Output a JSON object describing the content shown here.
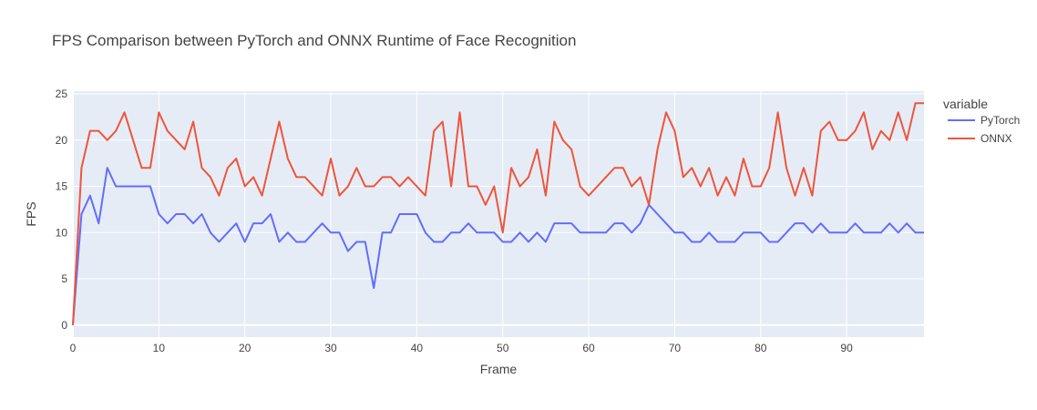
{
  "chart_data": {
    "type": "line",
    "title": "FPS Comparison between PyTorch and ONNX Runtime of Face Recognition",
    "xlabel": "Frame",
    "ylabel": "FPS",
    "xlim": [
      0,
      99
    ],
    "ylim": [
      -1.3,
      25.3
    ],
    "x_ticks": [
      0,
      10,
      20,
      30,
      40,
      50,
      60,
      70,
      80,
      90
    ],
    "y_ticks": [
      0,
      5,
      10,
      15,
      20,
      25
    ],
    "grid": true,
    "legend": {
      "title": "variable",
      "position": "right"
    },
    "plot_background": "#E5ECF6",
    "x": [
      0,
      1,
      2,
      3,
      4,
      5,
      6,
      7,
      8,
      9,
      10,
      11,
      12,
      13,
      14,
      15,
      16,
      17,
      18,
      19,
      20,
      21,
      22,
      23,
      24,
      25,
      26,
      27,
      28,
      29,
      30,
      31,
      32,
      33,
      34,
      35,
      36,
      37,
      38,
      39,
      40,
      41,
      42,
      43,
      44,
      45,
      46,
      47,
      48,
      49,
      50,
      51,
      52,
      53,
      54,
      55,
      56,
      57,
      58,
      59,
      60,
      61,
      62,
      63,
      64,
      65,
      66,
      67,
      68,
      69,
      70,
      71,
      72,
      73,
      74,
      75,
      76,
      77,
      78,
      79,
      80,
      81,
      82,
      83,
      84,
      85,
      86,
      87,
      88,
      89,
      90,
      91,
      92,
      93,
      94,
      95,
      96,
      97,
      98,
      99
    ],
    "series": [
      {
        "name": "PyTorch",
        "color": "#636EFA",
        "values": [
          0,
          12,
          14,
          11,
          17,
          15,
          15,
          15,
          15,
          15,
          12,
          11,
          12,
          12,
          11,
          12,
          10,
          9,
          10,
          11,
          9,
          11,
          11,
          12,
          9,
          10,
          9,
          9,
          10,
          11,
          10,
          10,
          8,
          9,
          9,
          4,
          10,
          10,
          12,
          12,
          12,
          10,
          9,
          9,
          10,
          10,
          11,
          10,
          10,
          10,
          9,
          9,
          10,
          9,
          10,
          9,
          11,
          11,
          11,
          10,
          10,
          10,
          10,
          11,
          11,
          10,
          11,
          13,
          12,
          11,
          10,
          10,
          9,
          9,
          10,
          9,
          9,
          9,
          10,
          10,
          10,
          9,
          9,
          10,
          11,
          11,
          10,
          11,
          10,
          10,
          10,
          11,
          10,
          10,
          10,
          11,
          10,
          11,
          10,
          10
        ]
      },
      {
        "name": "ONNX",
        "color": "#EF553B",
        "values": [
          0,
          17,
          21,
          21,
          20,
          21,
          23,
          20,
          17,
          17,
          23,
          21,
          20,
          19,
          22,
          17,
          16,
          14,
          17,
          18,
          15,
          16,
          14,
          18,
          22,
          18,
          16,
          16,
          15,
          14,
          18,
          14,
          15,
          17,
          15,
          15,
          16,
          16,
          15,
          16,
          15,
          14,
          21,
          22,
          15,
          23,
          15,
          15,
          13,
          15,
          10,
          17,
          15,
          16,
          19,
          14,
          22,
          20,
          19,
          15,
          14,
          15,
          16,
          17,
          17,
          15,
          16,
          13,
          19,
          23,
          21,
          16,
          17,
          15,
          17,
          14,
          16,
          14,
          18,
          15,
          15,
          17,
          23,
          17,
          14,
          17,
          14,
          21,
          22,
          20,
          20,
          21,
          23,
          19,
          21,
          20,
          23,
          20,
          24,
          24
        ]
      }
    ]
  }
}
